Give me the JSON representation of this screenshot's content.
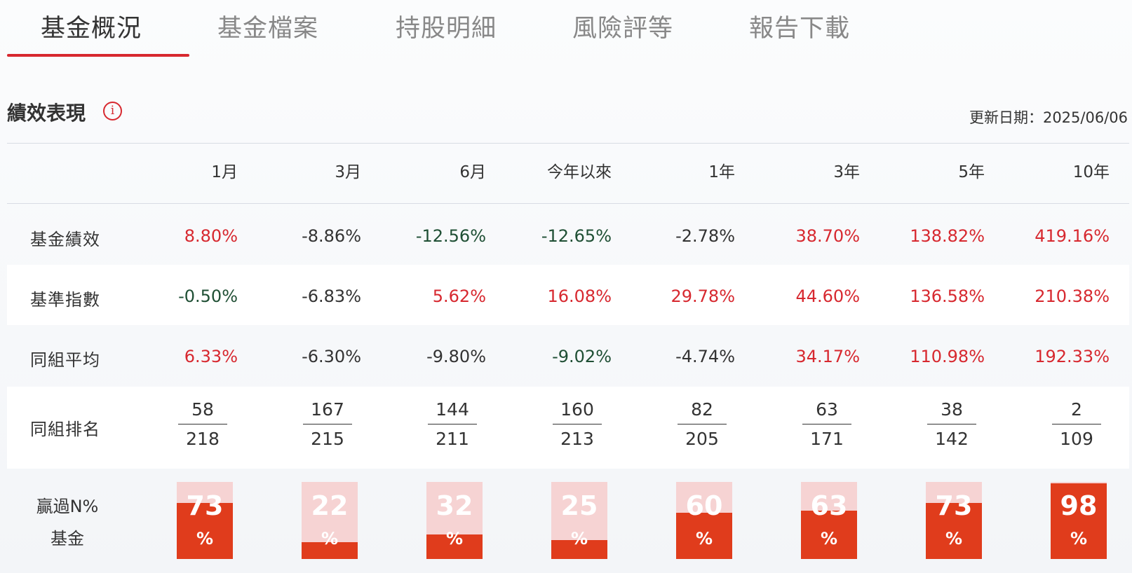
{
  "tabs": [
    {
      "label": "基金概況",
      "active": true
    },
    {
      "label": "基金檔案",
      "active": false
    },
    {
      "label": "持股明細",
      "active": false
    },
    {
      "label": "風險評等",
      "active": false
    },
    {
      "label": "報告下載",
      "active": false
    }
  ],
  "section": {
    "title": "績效表現",
    "info_icon": "info-icon",
    "update_label": "更新日期：",
    "update_date": "2025/06/06"
  },
  "columns": [
    "1月",
    "3月",
    "6月",
    "今年以來",
    "1年",
    "3年",
    "5年",
    "10年"
  ],
  "rows": {
    "fund": {
      "label": "基金績效",
      "values": [
        "8.80%",
        "-8.86%",
        "-12.56%",
        "-12.65%",
        "-2.78%",
        "38.70%",
        "138.82%",
        "419.16%"
      ],
      "tones": [
        "pos",
        "neu",
        "neg",
        "neg",
        "neu",
        "pos",
        "pos",
        "pos"
      ]
    },
    "benchmark": {
      "label": "基準指數",
      "values": [
        "-0.50%",
        "-6.83%",
        "5.62%",
        "16.08%",
        "29.78%",
        "44.60%",
        "136.58%",
        "210.38%"
      ],
      "tones": [
        "neg",
        "neu",
        "pos",
        "pos",
        "pos",
        "pos",
        "pos",
        "pos"
      ]
    },
    "peer_avg": {
      "label": "同組平均",
      "values": [
        "6.33%",
        "-6.30%",
        "-9.80%",
        "-9.02%",
        "-4.74%",
        "34.17%",
        "110.98%",
        "192.33%"
      ],
      "tones": [
        "pos",
        "neu",
        "neu",
        "neg",
        "neu",
        "pos",
        "pos",
        "pos"
      ]
    },
    "peer_rank": {
      "label": "同組排名",
      "ranks": [
        "58",
        "167",
        "144",
        "160",
        "82",
        "63",
        "38",
        "2"
      ],
      "totals": [
        "218",
        "215",
        "211",
        "213",
        "205",
        "171",
        "142",
        "109"
      ]
    },
    "beat": {
      "label_line1": "贏過N%",
      "label_line2": "基金",
      "percent_sign": "%",
      "values": [
        73,
        22,
        32,
        25,
        60,
        63,
        73,
        98
      ]
    }
  },
  "colors": {
    "accent": "#d7282f",
    "positive": "#d7282f",
    "negative": "#1f4f34",
    "beat_fill": "#e03c1c",
    "beat_bg": "#f6d3d3"
  }
}
